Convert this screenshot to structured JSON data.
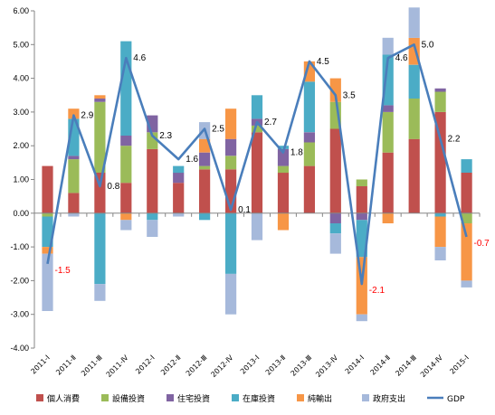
{
  "chart_data": {
    "type": "bar",
    "stacked": true,
    "title": "",
    "xlabel": "",
    "ylabel": "",
    "ylim": [
      -4.0,
      6.0
    ],
    "ytick_labels": [
      "-4.00",
      "-3.00",
      "-2.00",
      "-1.00",
      "0.00",
      "1.00",
      "2.00",
      "3.00",
      "4.00",
      "5.00",
      "6.00"
    ],
    "grid": false,
    "legend_position": "bottom",
    "categories": [
      "2011-Ⅰ",
      "2011-Ⅱ",
      "2011-Ⅲ",
      "2011-Ⅳ",
      "2012-Ⅰ",
      "2012-Ⅱ",
      "2012-Ⅲ",
      "2012-Ⅳ",
      "2013-Ⅰ",
      "2013-Ⅱ",
      "2013-Ⅲ",
      "2013-Ⅳ",
      "2014-Ⅰ",
      "2014-Ⅱ",
      "2014-Ⅲ",
      "2014-Ⅳ",
      "2015-Ⅰ"
    ],
    "series": [
      {
        "name": "個人消費",
        "color": "#C0504D",
        "values": [
          1.4,
          0.6,
          1.2,
          0.9,
          1.9,
          0.9,
          1.3,
          1.3,
          2.4,
          1.2,
          1.4,
          2.5,
          0.8,
          1.8,
          2.2,
          3.0,
          1.2
        ]
      },
      {
        "name": "設備投資",
        "color": "#9BBB59",
        "values": [
          -0.1,
          1.0,
          2.1,
          1.1,
          0.5,
          0.0,
          0.1,
          0.4,
          0.2,
          0.2,
          0.7,
          0.8,
          0.2,
          1.2,
          1.2,
          0.6,
          -0.3
        ]
      },
      {
        "name": "住宅投資",
        "color": "#8064A2",
        "values": [
          0.0,
          0.1,
          0.1,
          0.3,
          0.5,
          0.3,
          0.4,
          0.5,
          0.2,
          0.5,
          0.3,
          -0.3,
          -0.2,
          0.2,
          0.0,
          0.1,
          0.0
        ]
      },
      {
        "name": "在庫投資",
        "color": "#4BACC6",
        "values": [
          -0.9,
          1.1,
          -2.1,
          2.8,
          -0.2,
          0.2,
          -0.2,
          -1.8,
          0.7,
          0.1,
          1.5,
          -0.3,
          -1.1,
          1.5,
          1.0,
          -0.1,
          0.4
        ]
      },
      {
        "name": "純輸出",
        "color": "#F79646",
        "values": [
          -0.2,
          0.3,
          0.1,
          -0.2,
          0.0,
          0.0,
          0.4,
          0.9,
          0.0,
          -0.5,
          0.6,
          0.7,
          -1.7,
          -0.3,
          0.8,
          -0.9,
          -1.7
        ]
      },
      {
        "name": "政府支出",
        "color": "#A6B9DB",
        "values": [
          -1.7,
          -0.1,
          -0.5,
          -0.3,
          -0.5,
          -0.1,
          0.5,
          -1.2,
          -0.8,
          0.0,
          0.0,
          -0.6,
          -0.2,
          0.5,
          0.9,
          -0.4,
          -0.2
        ]
      }
    ],
    "line": {
      "name": "GDP",
      "color": "#4A7EBB",
      "values": [
        -1.5,
        2.9,
        0.8,
        4.6,
        2.3,
        1.6,
        2.5,
        0.1,
        2.7,
        1.8,
        4.5,
        3.5,
        -2.1,
        4.6,
        5.0,
        2.2,
        -0.7
      ]
    },
    "data_labels": [
      "-1.5",
      "2.9",
      "0.8",
      "4.6",
      "2.3",
      "1.6",
      "2.5",
      "0.1",
      "2.7",
      "1.8",
      "4.5",
      "3.5",
      "-2.1",
      "4.6",
      "5.0",
      "2.2",
      "-0.7"
    ]
  },
  "colors": {
    "negative_label": "#FF0000",
    "positive_label": "#000000",
    "axis": "#868686"
  }
}
